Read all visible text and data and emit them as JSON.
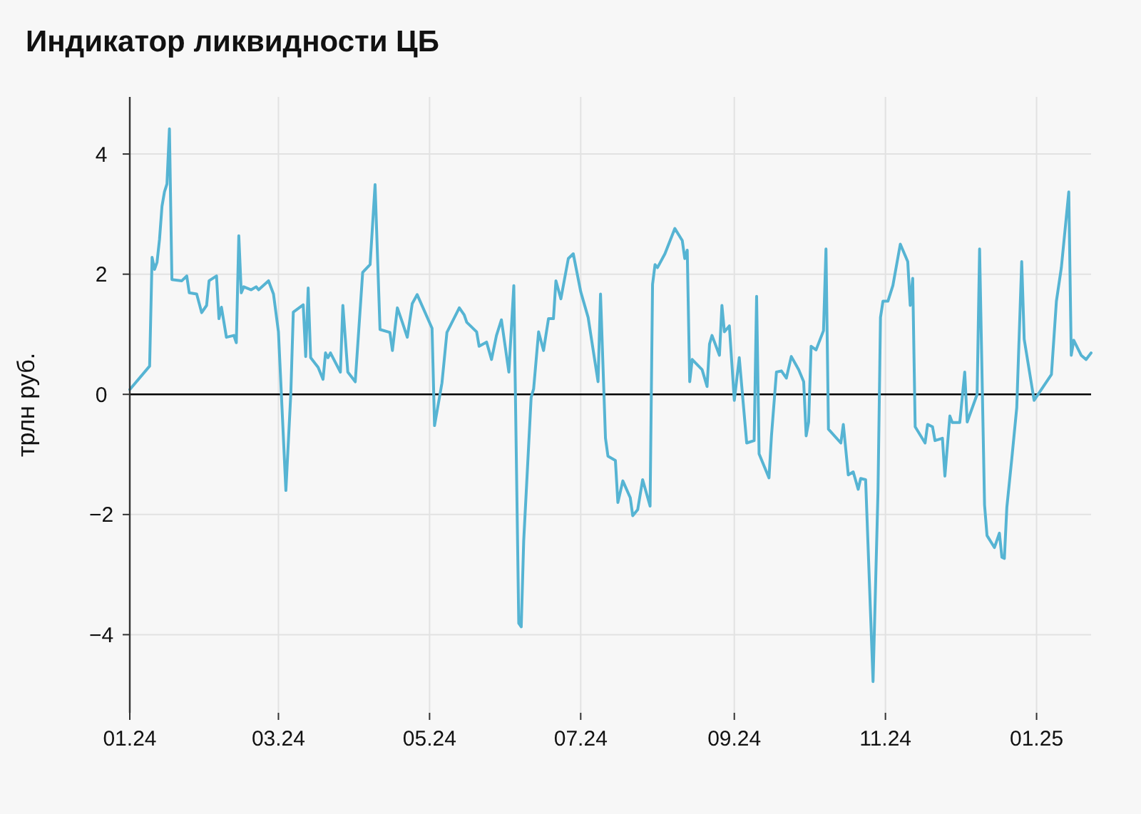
{
  "chart_data": {
    "type": "line",
    "title": "Индикатор ликвидности ЦБ",
    "ylabel": "трлн руб.",
    "xlim": [
      "2024-01-01",
      "2025-01-23"
    ],
    "ylim": [
      -5.3,
      4.95
    ],
    "xticks": [
      {
        "value": "2024-01-01",
        "label": "01.24"
      },
      {
        "value": "2024-03-01",
        "label": "03.24"
      },
      {
        "value": "2024-05-01",
        "label": "05.24"
      },
      {
        "value": "2024-07-01",
        "label": "07.24"
      },
      {
        "value": "2024-09-01",
        "label": "09.24"
      },
      {
        "value": "2024-11-01",
        "label": "11.24"
      },
      {
        "value": "2025-01-01",
        "label": "01.25"
      }
    ],
    "yticks": [
      {
        "value": -4,
        "label": "−4"
      },
      {
        "value": -2,
        "label": "−2"
      },
      0,
      2,
      4
    ],
    "grid": true,
    "ref_lines": [
      {
        "axis": "y",
        "value": 0,
        "color": "#000000"
      }
    ],
    "series": [
      {
        "color": "#56b4d3",
        "x": [
          "2024-01-01",
          "2024-01-09",
          "2024-01-10",
          "2024-01-11",
          "2024-01-12",
          "2024-01-13",
          "2024-01-14",
          "2024-01-15",
          "2024-01-16",
          "2024-01-17",
          "2024-01-18",
          "2024-01-22",
          "2024-01-24",
          "2024-01-25",
          "2024-01-28",
          "2024-01-30",
          "2024-02-01",
          "2024-02-02",
          "2024-02-05",
          "2024-02-06",
          "2024-02-07",
          "2024-02-09",
          "2024-02-12",
          "2024-02-13",
          "2024-02-14",
          "2024-02-15",
          "2024-02-16",
          "2024-02-19",
          "2024-02-21",
          "2024-02-22",
          "2024-02-26",
          "2024-02-28",
          "2024-03-01",
          "2024-03-04",
          "2024-03-06",
          "2024-03-07",
          "2024-03-11",
          "2024-03-12",
          "2024-03-13",
          "2024-03-14",
          "2024-03-17",
          "2024-03-19",
          "2024-03-20",
          "2024-03-21",
          "2024-03-22",
          "2024-03-26",
          "2024-03-27",
          "2024-03-29",
          "2024-04-01",
          "2024-04-04",
          "2024-04-07",
          "2024-04-09",
          "2024-04-11",
          "2024-04-15",
          "2024-04-16",
          "2024-04-18",
          "2024-04-20",
          "2024-04-22",
          "2024-04-24",
          "2024-04-26",
          "2024-05-02",
          "2024-05-03",
          "2024-05-06",
          "2024-05-08",
          "2024-05-13",
          "2024-05-15",
          "2024-05-16",
          "2024-05-20",
          "2024-05-21",
          "2024-05-24",
          "2024-05-26",
          "2024-05-28",
          "2024-05-30",
          "2024-06-02",
          "2024-06-04",
          "2024-06-06",
          "2024-06-07",
          "2024-06-08",
          "2024-06-11",
          "2024-06-12",
          "2024-06-14",
          "2024-06-16",
          "2024-06-18",
          "2024-06-20",
          "2024-06-21",
          "2024-06-23",
          "2024-06-26",
          "2024-06-28",
          "2024-07-01",
          "2024-07-04",
          "2024-07-08",
          "2024-07-09",
          "2024-07-11",
          "2024-07-12",
          "2024-07-15",
          "2024-07-16",
          "2024-07-18",
          "2024-07-21",
          "2024-07-22",
          "2024-07-24",
          "2024-07-26",
          "2024-07-29",
          "2024-07-30",
          "2024-07-31",
          "2024-08-01",
          "2024-08-04",
          "2024-08-08",
          "2024-08-11",
          "2024-08-12",
          "2024-08-13",
          "2024-08-14",
          "2024-08-15",
          "2024-08-19",
          "2024-08-21",
          "2024-08-22",
          "2024-08-23",
          "2024-08-26",
          "2024-08-27",
          "2024-08-28",
          "2024-08-30",
          "2024-09-01",
          "2024-09-03",
          "2024-09-06",
          "2024-09-09",
          "2024-09-10",
          "2024-09-11",
          "2024-09-15",
          "2024-09-16",
          "2024-09-18",
          "2024-09-20",
          "2024-09-22",
          "2024-09-24",
          "2024-09-27",
          "2024-09-29",
          "2024-09-30",
          "2024-10-01",
          "2024-10-02",
          "2024-10-04",
          "2024-10-07",
          "2024-10-08",
          "2024-10-09",
          "2024-10-14",
          "2024-10-15",
          "2024-10-17",
          "2024-10-19",
          "2024-10-21",
          "2024-10-22",
          "2024-10-24",
          "2024-10-27",
          "2024-10-29",
          "2024-10-30",
          "2024-10-31",
          "2024-11-02",
          "2024-11-04",
          "2024-11-07",
          "2024-11-10",
          "2024-11-11",
          "2024-11-12",
          "2024-11-13",
          "2024-11-17",
          "2024-11-18",
          "2024-11-20",
          "2024-11-21",
          "2024-11-24",
          "2024-11-25",
          "2024-11-27",
          "2024-11-28",
          "2024-12-01",
          "2024-12-03",
          "2024-12-04",
          "2024-12-08",
          "2024-12-09",
          "2024-12-11",
          "2024-12-12",
          "2024-12-15",
          "2024-12-17",
          "2024-12-18",
          "2024-12-19",
          "2024-12-20",
          "2024-12-22",
          "2024-12-24",
          "2024-12-26",
          "2024-12-27",
          "2024-12-31",
          "2025-01-07",
          "2025-01-09",
          "2025-01-11",
          "2025-01-14",
          "2025-01-15",
          "2025-01-16",
          "2025-01-19",
          "2025-01-21",
          "2025-01-23"
        ],
        "values": [
          0.08,
          0.47,
          2.28,
          2.08,
          2.2,
          2.58,
          3.13,
          3.37,
          3.5,
          4.42,
          1.91,
          1.89,
          1.97,
          1.69,
          1.67,
          1.36,
          1.48,
          1.89,
          1.97,
          1.26,
          1.45,
          0.95,
          0.98,
          0.86,
          2.64,
          1.69,
          1.79,
          1.74,
          1.79,
          1.74,
          1.89,
          1.67,
          1.04,
          -1.6,
          0.02,
          1.37,
          1.49,
          0.63,
          1.77,
          0.61,
          0.45,
          0.25,
          0.69,
          0.61,
          0.69,
          0.37,
          1.48,
          0.37,
          0.21,
          2.03,
          2.16,
          3.49,
          1.08,
          1.03,
          0.73,
          1.44,
          1.2,
          0.95,
          1.51,
          1.66,
          1.1,
          -0.52,
          0.19,
          1.03,
          1.44,
          1.32,
          1.2,
          1.04,
          0.8,
          0.87,
          0.58,
          0.98,
          1.24,
          0.37,
          1.81,
          -3.81,
          -3.87,
          -2.43,
          -0.05,
          0.09,
          1.04,
          0.73,
          1.26,
          1.26,
          1.89,
          1.59,
          2.26,
          2.34,
          1.71,
          1.28,
          0.21,
          1.67,
          -0.73,
          -1.03,
          -1.1,
          -1.8,
          -1.44,
          -1.72,
          -2.02,
          -1.92,
          -1.42,
          -1.86,
          1.83,
          2.16,
          2.11,
          2.34,
          2.76,
          2.56,
          2.26,
          2.4,
          0.21,
          0.58,
          0.41,
          0.13,
          0.84,
          0.98,
          0.65,
          1.48,
          1.04,
          1.14,
          -0.1,
          0.61,
          -0.81,
          -0.77,
          1.63,
          -0.99,
          -1.39,
          -0.69,
          0.37,
          0.39,
          0.27,
          0.63,
          0.41,
          0.21,
          -0.69,
          -0.46,
          0.8,
          0.74,
          1.06,
          2.42,
          -0.58,
          -0.81,
          -0.5,
          -1.34,
          -1.29,
          -1.58,
          -1.4,
          -1.42,
          -4.78,
          -1.6,
          1.28,
          1.55,
          1.55,
          1.81,
          2.5,
          2.21,
          1.48,
          1.93,
          -0.54,
          -0.81,
          -0.5,
          -0.54,
          -0.77,
          -0.73,
          -1.36,
          -0.36,
          -0.47,
          -0.47,
          0.37,
          -0.46,
          0,
          2.42,
          -1.84,
          -2.35,
          -2.55,
          -2.31,
          -2.71,
          -2.73,
          -1.88,
          -1.07,
          -0.22,
          2.21,
          0.92,
          -0.1,
          0.33,
          1.55,
          2.11,
          3.37,
          0.65,
          0.9,
          0.65,
          0.58,
          0.69
        ]
      }
    ]
  }
}
